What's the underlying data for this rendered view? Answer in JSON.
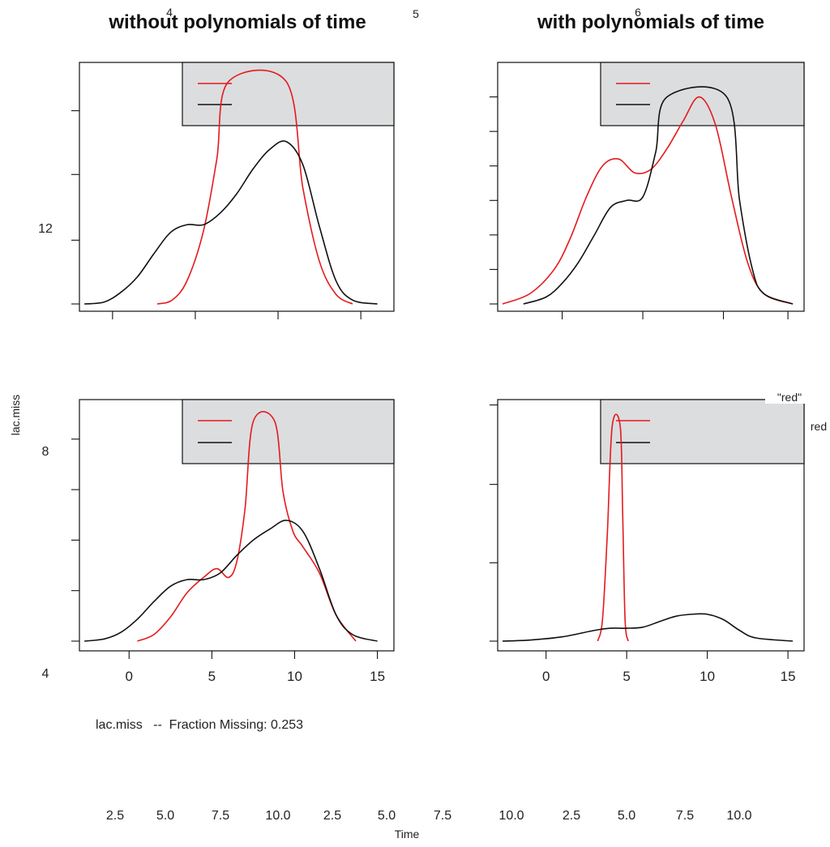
{
  "titles": {
    "left": "without polynomials of time",
    "right": "with polynomials of time"
  },
  "stray_numbers": {
    "n4": "4",
    "n5": "5",
    "n6": "6"
  },
  "y_axis": {
    "label": "lac.miss",
    "tick_labels": [
      "12",
      "8",
      "4"
    ]
  },
  "x_axis": {
    "label": "Time",
    "tick_labels": [
      "0",
      "5",
      "10",
      "15"
    ]
  },
  "bottom_strip_ticks": [
    "2.5",
    "5.0",
    "7.5",
    "10.0",
    "2.5",
    "5.0",
    "7.5",
    "10.0",
    "2.5",
    "5.0",
    "7.5",
    "10.0"
  ],
  "caption": "lac.miss   --  Fraction Missing: 0.253",
  "annotations": {
    "red_quoted": "\"red\"",
    "red": "red"
  },
  "colors": {
    "observed": "#e41a1c",
    "imputed": "#111111",
    "legend_bg": "#dcdddf"
  },
  "chart_data": [
    {
      "type": "line",
      "panel": "top-left",
      "x_range": [
        -3,
        16
      ],
      "series": [
        {
          "color": "red",
          "points": [
            [
              1.7,
              0.0
            ],
            [
              2.6,
              0.02
            ],
            [
              3.5,
              0.12
            ],
            [
              4.5,
              0.38
            ],
            [
              5.3,
              0.75
            ],
            [
              6.0,
              1.15
            ],
            [
              9.5,
              1.15
            ],
            [
              10.5,
              0.6
            ],
            [
              11.5,
              0.22
            ],
            [
              12.5,
              0.05
            ],
            [
              13.5,
              0.0
            ]
          ]
        },
        {
          "color": "black",
          "points": [
            [
              -2.7,
              0.0
            ],
            [
              -1.5,
              0.01
            ],
            [
              -0.5,
              0.06
            ],
            [
              0.5,
              0.14
            ],
            [
              1.5,
              0.26
            ],
            [
              2.5,
              0.37
            ],
            [
              3.5,
              0.41
            ],
            [
              4.5,
              0.41
            ],
            [
              5.5,
              0.47
            ],
            [
              6.5,
              0.57
            ],
            [
              7.5,
              0.7
            ],
            [
              8.5,
              0.8
            ],
            [
              9.5,
              0.84
            ],
            [
              10.5,
              0.72
            ],
            [
              11.5,
              0.4
            ],
            [
              12.5,
              0.12
            ],
            [
              13.5,
              0.02
            ],
            [
              15.0,
              0.0
            ]
          ]
        }
      ]
    },
    {
      "type": "line",
      "panel": "top-right",
      "x_range": [
        -3,
        16
      ],
      "series": [
        {
          "color": "red",
          "points": [
            [
              -2.7,
              0.0
            ],
            [
              -1.0,
              0.03
            ],
            [
              0.5,
              0.1
            ],
            [
              1.5,
              0.19
            ],
            [
              2.5,
              0.31
            ],
            [
              3.5,
              0.4
            ],
            [
              4.5,
              0.42
            ],
            [
              5.5,
              0.38
            ],
            [
              6.5,
              0.39
            ],
            [
              7.5,
              0.45
            ],
            [
              8.5,
              0.53
            ],
            [
              9.5,
              0.6
            ],
            [
              10.5,
              0.52
            ],
            [
              11.5,
              0.31
            ],
            [
              12.5,
              0.12
            ],
            [
              13.5,
              0.03
            ],
            [
              15.3,
              0.0
            ]
          ]
        },
        {
          "color": "black",
          "points": [
            [
              -1.4,
              0.0
            ],
            [
              0.0,
              0.02
            ],
            [
              1.0,
              0.06
            ],
            [
              2.0,
              0.12
            ],
            [
              3.0,
              0.2
            ],
            [
              4.0,
              0.28
            ],
            [
              5.0,
              0.3
            ],
            [
              6.0,
              0.31
            ],
            [
              6.8,
              0.44
            ],
            [
              7.5,
              0.6
            ],
            [
              11.2,
              0.6
            ],
            [
              12.0,
              0.3
            ],
            [
              12.8,
              0.1
            ],
            [
              13.5,
              0.03
            ],
            [
              15.3,
              0.0
            ]
          ]
        }
      ]
    },
    {
      "type": "line",
      "panel": "bottom-left",
      "x_range": [
        -3,
        16
      ],
      "series": [
        {
          "color": "red",
          "points": [
            [
              0.5,
              0.0
            ],
            [
              1.5,
              0.03
            ],
            [
              2.5,
              0.11
            ],
            [
              3.5,
              0.22
            ],
            [
              4.5,
              0.29
            ],
            [
              5.3,
              0.33
            ],
            [
              6.0,
              0.29
            ],
            [
              6.5,
              0.36
            ],
            [
              7.0,
              0.6
            ],
            [
              7.5,
              1.0
            ],
            [
              8.8,
              1.0
            ],
            [
              9.3,
              0.68
            ],
            [
              9.9,
              0.5
            ],
            [
              10.5,
              0.43
            ],
            [
              11.5,
              0.31
            ],
            [
              12.5,
              0.12
            ],
            [
              13.7,
              0.0
            ]
          ]
        },
        {
          "color": "black",
          "points": [
            [
              -2.7,
              0.0
            ],
            [
              -1.5,
              0.01
            ],
            [
              -0.5,
              0.04
            ],
            [
              0.5,
              0.1
            ],
            [
              1.5,
              0.18
            ],
            [
              2.5,
              0.25
            ],
            [
              3.5,
              0.28
            ],
            [
              4.5,
              0.28
            ],
            [
              5.5,
              0.31
            ],
            [
              6.5,
              0.39
            ],
            [
              7.5,
              0.46
            ],
            [
              8.5,
              0.51
            ],
            [
              9.5,
              0.55
            ],
            [
              10.5,
              0.5
            ],
            [
              11.5,
              0.33
            ],
            [
              12.5,
              0.12
            ],
            [
              13.5,
              0.03
            ],
            [
              15.0,
              0.0
            ]
          ]
        }
      ]
    },
    {
      "type": "line",
      "panel": "bottom-right",
      "x_range": [
        -3,
        16
      ],
      "series": [
        {
          "color": "red",
          "points": [
            [
              3.2,
              0.0
            ],
            [
              3.5,
              0.2
            ],
            [
              3.8,
              1.0
            ],
            [
              4.1,
              2.0
            ],
            [
              4.6,
              2.0
            ],
            [
              4.75,
              1.2
            ],
            [
              4.9,
              0.2
            ],
            [
              5.1,
              0.0
            ]
          ]
        },
        {
          "color": "black",
          "points": [
            [
              -2.7,
              0.0
            ],
            [
              -1.0,
              0.01
            ],
            [
              1.0,
              0.04
            ],
            [
              3.0,
              0.1
            ],
            [
              4.0,
              0.12
            ],
            [
              5.0,
              0.12
            ],
            [
              6.0,
              0.13
            ],
            [
              7.0,
              0.18
            ],
            [
              8.0,
              0.23
            ],
            [
              9.0,
              0.25
            ],
            [
              10.0,
              0.25
            ],
            [
              11.0,
              0.2
            ],
            [
              12.0,
              0.1
            ],
            [
              13.0,
              0.03
            ],
            [
              15.3,
              0.0
            ]
          ]
        }
      ]
    }
  ]
}
